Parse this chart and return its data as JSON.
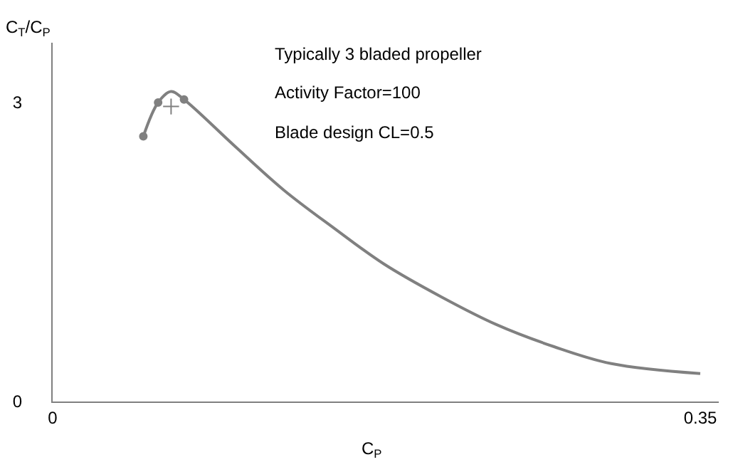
{
  "chart_data": {
    "type": "line",
    "xlabel": "C$_{P}$",
    "ylabel": "C$_{T}$/C$_{P}$",
    "annotations": [
      "Typically 3 bladed propeller",
      "Activity Factor=100",
      "Blade design CL=0.5"
    ],
    "series": [
      {
        "color": "#808080",
        "marker": "none",
        "x": [
          0.049,
          0.057,
          0.064,
          0.071,
          0.098,
          0.125,
          0.152,
          0.179,
          0.21,
          0.24,
          0.271,
          0.302,
          0.35
        ],
        "values": [
          2.66,
          3.0,
          3.11,
          3.03,
          2.57,
          2.12,
          1.74,
          1.38,
          1.05,
          0.77,
          0.55,
          0.38,
          0.28
        ]
      },
      {
        "type": "scatter",
        "color": "#808080",
        "marker": "circle",
        "x": [
          0.049,
          0.057,
          0.071
        ],
        "values": [
          2.66,
          3.0,
          3.03
        ]
      },
      {
        "type": "scatter",
        "color": "#808080",
        "marker": "cross",
        "x": [
          0.064
        ],
        "values": [
          2.96
        ]
      }
    ],
    "xlim": [
      0,
      0.36
    ],
    "ylim": [
      0,
      3.6
    ],
    "xticks": [
      0,
      0.35
    ],
    "yticks": [
      0,
      3
    ]
  }
}
